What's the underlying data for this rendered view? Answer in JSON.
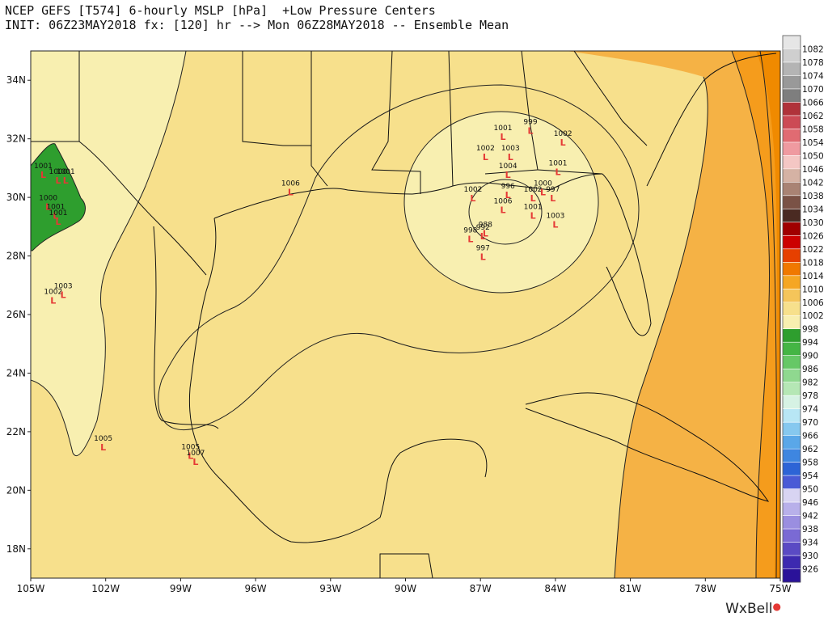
{
  "header": {
    "line1": "NCEP GEFS [T574] 6-hourly MSLP [hPa]  +Low Pressure Centers",
    "line2": "INIT: 06Z23MAY2018 fx: [120] hr --> Mon 06Z28MAY2018 -- Ensemble Mean"
  },
  "brand": {
    "name": "WxBell",
    "mark": "●"
  },
  "axes": {
    "lon_labels": [
      "105W",
      "102W",
      "99W",
      "96W",
      "93W",
      "90W",
      "87W",
      "84W",
      "81W",
      "78W",
      "75W"
    ],
    "lat_labels": [
      "34N",
      "32N",
      "30N",
      "28N",
      "26N",
      "24N",
      "22N",
      "20N",
      "18N"
    ]
  },
  "colorbar": {
    "labels": [
      "1082",
      "1078",
      "1074",
      "1070",
      "1066",
      "1062",
      "1058",
      "1054",
      "1050",
      "1046",
      "1042",
      "1038",
      "1034",
      "1030",
      "1026",
      "1022",
      "1018",
      "1014",
      "1010",
      "1006",
      "1002",
      "998",
      "994",
      "990",
      "986",
      "982",
      "978",
      "974",
      "970",
      "966",
      "962",
      "958",
      "954",
      "950",
      "946",
      "942",
      "938",
      "934",
      "930",
      "926"
    ],
    "colors": [
      "#e6e6e6",
      "#cfcfcf",
      "#b4b4b4",
      "#999999",
      "#7e7e7e",
      "#b0323a",
      "#cc4a55",
      "#e06b72",
      "#ef9aa0",
      "#f4c7c4",
      "#d5b2a4",
      "#a98374",
      "#7a5246",
      "#4a2a22",
      "#a00000",
      "#cc0000",
      "#e64000",
      "#f07800",
      "#f5a623",
      "#f5c55a",
      "#f7e08c",
      "#f8efb0",
      "#2e9e2e",
      "#44b544",
      "#66c866",
      "#8fd88f",
      "#b5e7b5",
      "#d6f2e4",
      "#b8e6f5",
      "#86c8ef",
      "#5aa7e8",
      "#3e86e0",
      "#2d64d6",
      "#4a5bd6",
      "#d8d4f2",
      "#b8b0ea",
      "#9a8ee0",
      "#7a6ad4",
      "#5a4ac4",
      "#3d2ab0",
      "#2a1299"
    ]
  },
  "map": {
    "pressure_colors": {
      "p1002": "#f8efb0",
      "p1006": "#f7e08c",
      "p1010": "#f5d57a",
      "p1014": "#f5a623",
      "p1018": "#f08a00",
      "p998": "#2e9e2e"
    },
    "low_centers": [
      {
        "label": "1001",
        "lon": -104.5,
        "lat": 31.0
      },
      {
        "label": "1000",
        "lon": -103.9,
        "lat": 30.8
      },
      {
        "label": "1001",
        "lon": -103.6,
        "lat": 30.8
      },
      {
        "label": "1000",
        "lon": -104.3,
        "lat": 29.9
      },
      {
        "label": "1001",
        "lon": -104.0,
        "lat": 29.6
      },
      {
        "label": "1001",
        "lon": -103.9,
        "lat": 29.4
      },
      {
        "label": "1002",
        "lon": -104.1,
        "lat": 26.7
      },
      {
        "label": "1003",
        "lon": -103.7,
        "lat": 26.9
      },
      {
        "label": "1006",
        "lon": -94.6,
        "lat": 30.4
      },
      {
        "label": "1001",
        "lon": -86.1,
        "lat": 32.3
      },
      {
        "label": "999",
        "lon": -85.0,
        "lat": 32.5
      },
      {
        "label": "1002",
        "lon": -83.7,
        "lat": 32.1
      },
      {
        "label": "1002",
        "lon": -86.8,
        "lat": 31.6
      },
      {
        "label": "1003",
        "lon": -85.8,
        "lat": 31.6
      },
      {
        "label": "1004",
        "lon": -85.9,
        "lat": 31.0
      },
      {
        "label": "1001",
        "lon": -83.9,
        "lat": 31.1
      },
      {
        "label": "1002",
        "lon": -87.3,
        "lat": 30.2
      },
      {
        "label": "996",
        "lon": -85.9,
        "lat": 30.3
      },
      {
        "label": "1002",
        "lon": -84.9,
        "lat": 30.2
      },
      {
        "label": "1000",
        "lon": -84.5,
        "lat": 30.4
      },
      {
        "label": "997",
        "lon": -84.1,
        "lat": 30.2
      },
      {
        "label": "1006",
        "lon": -86.1,
        "lat": 29.8
      },
      {
        "label": "1001",
        "lon": -84.9,
        "lat": 29.6
      },
      {
        "label": "1003",
        "lon": -84.0,
        "lat": 29.3
      },
      {
        "label": "998",
        "lon": -87.4,
        "lat": 28.8
      },
      {
        "label": "992",
        "lon": -86.9,
        "lat": 28.9
      },
      {
        "label": "988",
        "lon": -86.8,
        "lat": 29.0
      },
      {
        "label": "997",
        "lon": -86.9,
        "lat": 28.2
      },
      {
        "label": "1005",
        "lon": -102.1,
        "lat": 21.7
      },
      {
        "label": "1005",
        "lon": -98.6,
        "lat": 21.4
      },
      {
        "label": "1007",
        "lon": -98.4,
        "lat": 21.2
      }
    ]
  }
}
